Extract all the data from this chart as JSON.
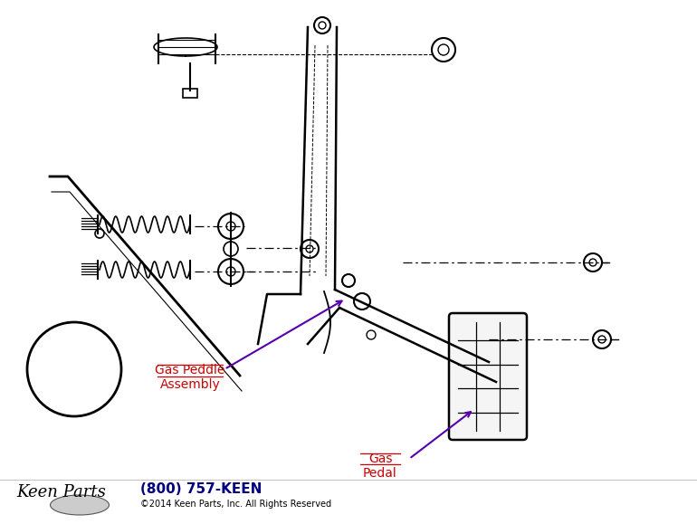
{
  "bg_color": "#ffffff",
  "line_color": "#000000",
  "label1_color": "#cc0000",
  "arrow_color": "#5500aa",
  "phone_color": "#000080",
  "label1_text": "Gas Peddle\nAssembly",
  "label2_text": "Gas\nPedal",
  "footer_phone": "(800) 757-KEEN",
  "footer_copy": "©2014 Keen Parts, Inc. All Rights Reserved",
  "figsize": [
    7.7,
    5.79
  ],
  "dpi": 100
}
